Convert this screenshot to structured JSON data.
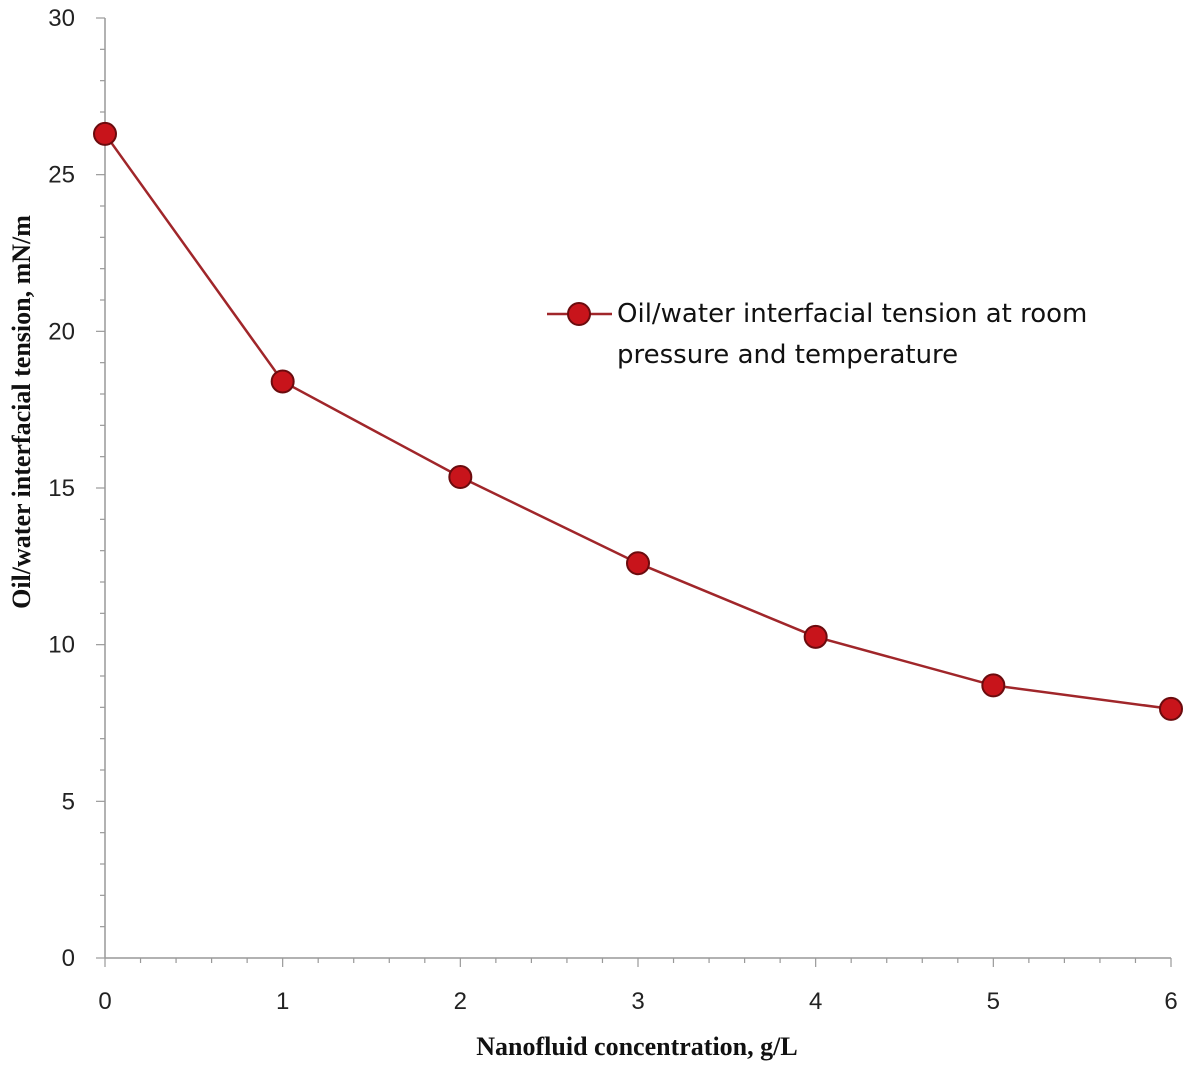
{
  "colors": {
    "series": "#a0262a",
    "marker_fill": "#c8141b",
    "marker_edge": "#6b0b0e",
    "axis": "#999999",
    "background": "#ffffff"
  },
  "chart_data": {
    "type": "line",
    "title": "",
    "xlabel": "Nanofluid concentration, g/L",
    "ylabel": "Oil/water interfacial tension, mN/m",
    "xlim": [
      0,
      6
    ],
    "ylim": [
      0,
      30
    ],
    "x_ticks": [
      "0",
      "1",
      "2",
      "3",
      "4",
      "5",
      "6"
    ],
    "y_ticks": [
      "0",
      "5",
      "10",
      "15",
      "20",
      "25",
      "30"
    ],
    "grid": false,
    "legend_position": "center-right",
    "legend": {
      "line1": "Oil/water interfacial tension at room",
      "line2": "pressure and temperature"
    },
    "series": [
      {
        "name": "Oil/water interfacial tension at room pressure and temperature",
        "x": [
          0,
          1,
          2,
          3,
          4,
          5,
          6
        ],
        "values": [
          26.3,
          18.4,
          15.35,
          12.6,
          10.25,
          8.7,
          7.95
        ]
      }
    ]
  }
}
